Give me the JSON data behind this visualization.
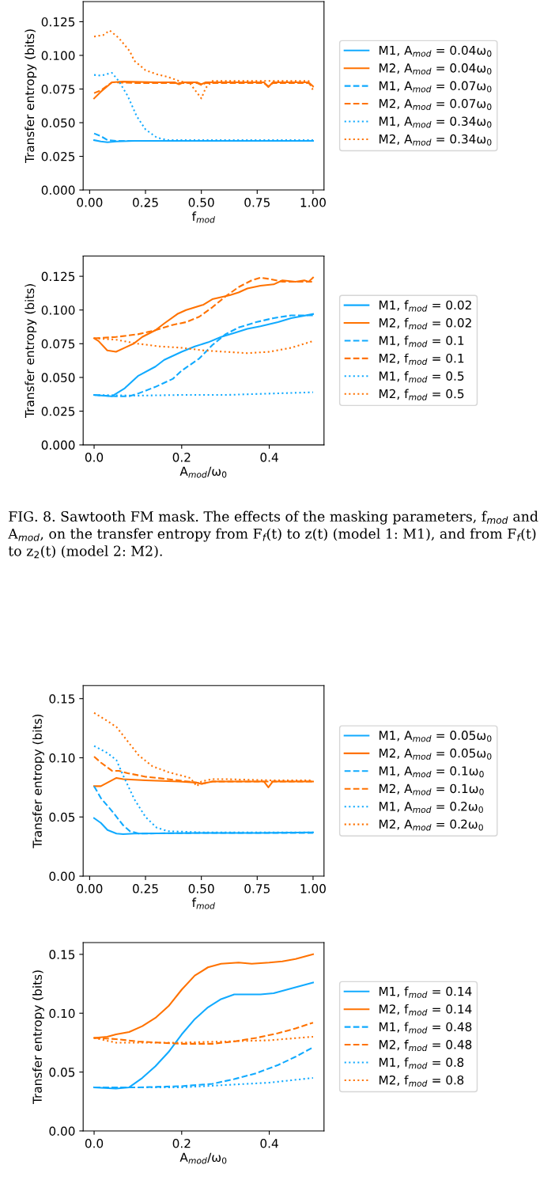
{
  "chart_data": [
    {
      "type": "line",
      "ylabel": "Transfer entropy (bits)",
      "xlabel": "f$_{mod}$",
      "legend": "right",
      "grid": false,
      "marker": "none",
      "xlim": [
        -0.029,
        1.049
      ],
      "ylim": [
        0,
        0.14
      ],
      "xticks": [
        {
          "value": 0,
          "label": "0.00"
        },
        {
          "value": 0.25,
          "label": "0.25"
        },
        {
          "value": 0.5,
          "label": "0.50"
        },
        {
          "value": 0.75,
          "label": "0.75"
        },
        {
          "value": 1,
          "label": "1.00"
        }
      ],
      "yticks": [
        {
          "value": 0,
          "label": "0.000"
        },
        {
          "value": 0.025,
          "label": "0.025"
        },
        {
          "value": 0.05,
          "label": "0.050"
        },
        {
          "value": 0.075,
          "label": "0.075"
        },
        {
          "value": 0.1,
          "label": "0.100"
        },
        {
          "value": 0.125,
          "label": "0.125"
        }
      ],
      "series": [
        {
          "name": "M1, A$_{mod}$ = 0.04ω$_{0}$",
          "color": "#11aaff",
          "line_style": "solid",
          "x": [
            0.02,
            0.05,
            0.08,
            0.12,
            0.2,
            0.4,
            0.6,
            0.8,
            1.0
          ],
          "values": [
            0.037,
            0.036,
            0.0355,
            0.036,
            0.0365,
            0.0365,
            0.0365,
            0.0365,
            0.0365
          ]
        },
        {
          "name": "M2, A$_{mod}$ = 0.04ω$_{0}$",
          "color": "#ff7200",
          "line_style": "solid",
          "x": [
            0.02,
            0.05,
            0.1,
            0.15,
            0.3,
            0.38,
            0.4,
            0.42,
            0.48,
            0.5,
            0.52,
            0.6,
            0.78,
            0.8,
            0.82,
            0.98,
            1.0
          ],
          "values": [
            0.068,
            0.073,
            0.08,
            0.0805,
            0.08,
            0.08,
            0.0785,
            0.08,
            0.08,
            0.0785,
            0.08,
            0.08,
            0.08,
            0.0765,
            0.08,
            0.08,
            0.077
          ]
        },
        {
          "name": "M1, A$_{mod}$ = 0.07ω$_{0}$",
          "color": "#11aaff",
          "line_style": "dashed",
          "x": [
            0.02,
            0.05,
            0.08,
            0.12,
            0.2,
            0.4,
            0.6,
            0.8,
            1.0
          ],
          "values": [
            0.042,
            0.04,
            0.037,
            0.0365,
            0.0365,
            0.0365,
            0.0365,
            0.0365,
            0.0365
          ]
        },
        {
          "name": "M2, A$_{mod}$ = 0.07ω$_{0}$",
          "color": "#ff7200",
          "line_style": "dashed",
          "x": [
            0.02,
            0.05,
            0.1,
            0.2,
            0.3,
            0.48,
            0.5,
            0.52,
            0.78,
            0.8,
            0.82,
            0.98,
            1.0
          ],
          "values": [
            0.072,
            0.074,
            0.08,
            0.0795,
            0.0795,
            0.0795,
            0.078,
            0.0795,
            0.0795,
            0.077,
            0.0795,
            0.0795,
            0.076
          ]
        },
        {
          "name": "M1, A$_{mod}$ = 0.34ω$_{0}$",
          "color": "#11aaff",
          "line_style": "dotted",
          "x": [
            0.02,
            0.05,
            0.1,
            0.13,
            0.17,
            0.21,
            0.25,
            0.3,
            0.35,
            0.5,
            0.75,
            1.0
          ],
          "values": [
            0.0855,
            0.085,
            0.087,
            0.081,
            0.07,
            0.055,
            0.045,
            0.039,
            0.037,
            0.037,
            0.037,
            0.037
          ]
        },
        {
          "name": "M2, A$_{mod}$ = 0.34ω$_{0}$",
          "color": "#ff7200",
          "line_style": "dotted",
          "x": [
            0.02,
            0.06,
            0.09,
            0.13,
            0.18,
            0.2,
            0.25,
            0.3,
            0.35,
            0.4,
            0.45,
            0.5,
            0.52,
            0.55,
            0.75,
            0.98,
            1.0
          ],
          "values": [
            0.114,
            0.115,
            0.1185,
            0.113,
            0.103,
            0.096,
            0.089,
            0.086,
            0.084,
            0.081,
            0.079,
            0.068,
            0.076,
            0.081,
            0.081,
            0.081,
            0.074
          ]
        }
      ]
    },
    {
      "type": "line",
      "ylabel": "Transfer entropy (bits)",
      "xlabel": "A$_{mod}$/ω$_{0}$",
      "legend": "right",
      "grid": false,
      "marker": "none",
      "xlim": [
        -0.025,
        0.525
      ],
      "ylim": [
        0,
        0.14
      ],
      "xticks": [
        {
          "value": 0,
          "label": "0.0"
        },
        {
          "value": 0.2,
          "label": "0.2"
        },
        {
          "value": 0.4,
          "label": "0.4"
        }
      ],
      "yticks": [
        {
          "value": 0,
          "label": "0.000"
        },
        {
          "value": 0.025,
          "label": "0.025"
        },
        {
          "value": 0.05,
          "label": "0.050"
        },
        {
          "value": 0.075,
          "label": "0.075"
        },
        {
          "value": 0.1,
          "label": "0.100"
        },
        {
          "value": 0.125,
          "label": "0.125"
        }
      ],
      "annotations": [
        "FIG. 8. Sawtooth FM mask. The effects of the masking parameters, f$_{mod}$ and A$_{mod}$, on the transfer entropy from F$_{f}$(t) to z(t) (model 1: M1), and from F$_{f}$(t) to z$_{2}$(t) (model 2: M2)."
      ],
      "series": [
        {
          "name": "M1, f$_{mod}$ = 0.02",
          "color": "#11aaff",
          "line_style": "solid",
          "x": [
            0,
            0.04,
            0.07,
            0.1,
            0.14,
            0.16,
            0.2,
            0.23,
            0.26,
            0.29,
            0.32,
            0.35,
            0.38,
            0.42,
            0.45,
            0.5
          ],
          "values": [
            0.037,
            0.036,
            0.042,
            0.051,
            0.058,
            0.063,
            0.069,
            0.073,
            0.076,
            0.08,
            0.083,
            0.086,
            0.088,
            0.091,
            0.094,
            0.097
          ]
        },
        {
          "name": "M2, f$_{mod}$ = 0.02",
          "color": "#ff7200",
          "line_style": "solid",
          "x": [
            0,
            0.01,
            0.03,
            0.05,
            0.07,
            0.09,
            0.11,
            0.14,
            0.16,
            0.19,
            0.21,
            0.25,
            0.27,
            0.31,
            0.33,
            0.35,
            0.38,
            0.41,
            0.43,
            0.46,
            0.48,
            0.49,
            0.5
          ],
          "values": [
            0.079,
            0.077,
            0.07,
            0.069,
            0.072,
            0.075,
            0.08,
            0.085,
            0.09,
            0.097,
            0.1,
            0.104,
            0.108,
            0.111,
            0.113,
            0.116,
            0.118,
            0.119,
            0.122,
            0.121,
            0.122,
            0.121,
            0.124
          ]
        },
        {
          "name": "M1, f$_{mod}$ = 0.1",
          "color": "#11aaff",
          "line_style": "dashed",
          "x": [
            0,
            0.05,
            0.08,
            0.1,
            0.14,
            0.18,
            0.2,
            0.24,
            0.27,
            0.3,
            0.33,
            0.37,
            0.41,
            0.45,
            0.5
          ],
          "values": [
            0.037,
            0.036,
            0.036,
            0.038,
            0.043,
            0.049,
            0.055,
            0.064,
            0.074,
            0.082,
            0.087,
            0.091,
            0.094,
            0.096,
            0.096
          ]
        },
        {
          "name": "M2, f$_{mod}$ = 0.1",
          "color": "#ff7200",
          "line_style": "dashed",
          "x": [
            0,
            0.05,
            0.1,
            0.14,
            0.18,
            0.21,
            0.24,
            0.27,
            0.3,
            0.33,
            0.36,
            0.38,
            0.4,
            0.43,
            0.5
          ],
          "values": [
            0.079,
            0.08,
            0.082,
            0.085,
            0.089,
            0.091,
            0.095,
            0.102,
            0.11,
            0.117,
            0.122,
            0.124,
            0.123,
            0.121,
            0.121
          ]
        },
        {
          "name": "M1, f$_{mod}$ = 0.5",
          "color": "#11aaff",
          "line_style": "dotted",
          "x": [
            0,
            0.1,
            0.2,
            0.3,
            0.4,
            0.5
          ],
          "values": [
            0.037,
            0.0365,
            0.037,
            0.037,
            0.038,
            0.039
          ]
        },
        {
          "name": "M2, f$_{mod}$ = 0.5",
          "color": "#ff7200",
          "line_style": "dotted",
          "x": [
            0,
            0.05,
            0.1,
            0.15,
            0.2,
            0.25,
            0.3,
            0.35,
            0.4,
            0.45,
            0.5
          ],
          "values": [
            0.079,
            0.078,
            0.075,
            0.073,
            0.072,
            0.07,
            0.069,
            0.068,
            0.069,
            0.072,
            0.077
          ]
        }
      ]
    },
    {
      "type": "line",
      "ylabel": "Transfer entropy (bits)",
      "xlabel": "f$_{mod}$",
      "legend": "right",
      "grid": false,
      "marker": "none",
      "xlim": [
        -0.029,
        1.049
      ],
      "ylim": [
        0,
        0.161
      ],
      "xticks": [
        {
          "value": 0,
          "label": "0.00"
        },
        {
          "value": 0.25,
          "label": "0.25"
        },
        {
          "value": 0.5,
          "label": "0.50"
        },
        {
          "value": 0.75,
          "label": "0.75"
        },
        {
          "value": 1,
          "label": "1.00"
        }
      ],
      "yticks": [
        {
          "value": 0,
          "label": "0.00"
        },
        {
          "value": 0.05,
          "label": "0.05"
        },
        {
          "value": 0.1,
          "label": "0.10"
        },
        {
          "value": 0.15,
          "label": "0.15"
        }
      ],
      "series": [
        {
          "name": "M1, A$_{mod}$ = 0.05ω$_{0}$",
          "color": "#11aaff",
          "line_style": "solid",
          "x": [
            0.02,
            0.05,
            0.08,
            0.12,
            0.15,
            0.2,
            0.5,
            0.75,
            1.0
          ],
          "values": [
            0.049,
            0.045,
            0.039,
            0.036,
            0.0355,
            0.036,
            0.0365,
            0.0365,
            0.037
          ]
        },
        {
          "name": "M2, A$_{mod}$ = 0.05ω$_{0}$",
          "color": "#ff7200",
          "line_style": "solid",
          "x": [
            0.02,
            0.05,
            0.09,
            0.12,
            0.15,
            0.25,
            0.4,
            0.48,
            0.5,
            0.55,
            0.78,
            0.8,
            0.82,
            1.0
          ],
          "values": [
            0.076,
            0.076,
            0.08,
            0.083,
            0.082,
            0.081,
            0.08,
            0.079,
            0.078,
            0.08,
            0.08,
            0.075,
            0.08,
            0.08
          ]
        },
        {
          "name": "M1, A$_{mod}$ = 0.1ω$_{0}$",
          "color": "#11aaff",
          "line_style": "dashed",
          "x": [
            0.02,
            0.05,
            0.1,
            0.15,
            0.18,
            0.22,
            0.5,
            0.75,
            1.0
          ],
          "values": [
            0.076,
            0.066,
            0.055,
            0.043,
            0.038,
            0.036,
            0.0365,
            0.0365,
            0.0365
          ]
        },
        {
          "name": "M2, A$_{mod}$ = 0.1ω$_{0}$",
          "color": "#ff7200",
          "line_style": "dashed",
          "x": [
            0.02,
            0.05,
            0.1,
            0.13,
            0.17,
            0.25,
            0.35,
            0.48,
            0.5,
            0.55,
            0.75,
            1.0
          ],
          "values": [
            0.101,
            0.096,
            0.089,
            0.089,
            0.087,
            0.084,
            0.082,
            0.079,
            0.078,
            0.08,
            0.08,
            0.08
          ]
        },
        {
          "name": "M1, A$_{mod}$ = 0.2ω$_{0}$",
          "color": "#11aaff",
          "line_style": "dotted",
          "x": [
            0.02,
            0.08,
            0.12,
            0.15,
            0.2,
            0.25,
            0.3,
            0.35,
            0.5,
            0.75,
            1.0
          ],
          "values": [
            0.11,
            0.104,
            0.098,
            0.085,
            0.065,
            0.05,
            0.041,
            0.038,
            0.037,
            0.037,
            0.037
          ]
        },
        {
          "name": "M2, A$_{mod}$ = 0.2ω$_{0}$",
          "color": "#ff7200",
          "line_style": "dotted",
          "x": [
            0.02,
            0.08,
            0.12,
            0.17,
            0.22,
            0.28,
            0.35,
            0.45,
            0.48,
            0.5,
            0.55,
            0.6,
            0.8,
            1.0
          ],
          "values": [
            0.138,
            0.131,
            0.126,
            0.114,
            0.102,
            0.093,
            0.088,
            0.083,
            0.076,
            0.08,
            0.082,
            0.082,
            0.081,
            0.081
          ]
        }
      ]
    },
    {
      "type": "line",
      "ylabel": "Transfer entropy (bits)",
      "xlabel": "A$_{mod}$/ω$_{0}$",
      "legend": "right",
      "grid": false,
      "marker": "none",
      "xlim": [
        -0.025,
        0.525
      ],
      "ylim": [
        0,
        0.16
      ],
      "xticks": [
        {
          "value": 0,
          "label": "0.0"
        },
        {
          "value": 0.2,
          "label": "0.2"
        },
        {
          "value": 0.4,
          "label": "0.4"
        }
      ],
      "yticks": [
        {
          "value": 0,
          "label": "0.00"
        },
        {
          "value": 0.05,
          "label": "0.05"
        },
        {
          "value": 0.1,
          "label": "0.10"
        },
        {
          "value": 0.15,
          "label": "0.15"
        }
      ],
      "series": [
        {
          "name": "M1, f$_{mod}$ = 0.14",
          "color": "#11aaff",
          "line_style": "solid",
          "x": [
            0,
            0.05,
            0.08,
            0.11,
            0.14,
            0.17,
            0.2,
            0.23,
            0.26,
            0.29,
            0.32,
            0.35,
            0.38,
            0.41,
            0.44,
            0.47,
            0.5
          ],
          "values": [
            0.037,
            0.036,
            0.037,
            0.045,
            0.055,
            0.067,
            0.082,
            0.095,
            0.105,
            0.112,
            0.116,
            0.116,
            0.116,
            0.117,
            0.12,
            0.123,
            0.126
          ]
        },
        {
          "name": "M2, f$_{mod}$ = 0.14",
          "color": "#ff7200",
          "line_style": "solid",
          "x": [
            0,
            0.03,
            0.05,
            0.08,
            0.11,
            0.14,
            0.17,
            0.2,
            0.23,
            0.26,
            0.29,
            0.33,
            0.36,
            0.4,
            0.43,
            0.46,
            0.5
          ],
          "values": [
            0.079,
            0.08,
            0.082,
            0.084,
            0.089,
            0.096,
            0.106,
            0.12,
            0.132,
            0.139,
            0.142,
            0.143,
            0.142,
            0.143,
            0.144,
            0.146,
            0.15
          ]
        },
        {
          "name": "M1, f$_{mod}$ = 0.48",
          "color": "#11aaff",
          "line_style": "dashed",
          "x": [
            0,
            0.1,
            0.2,
            0.27,
            0.32,
            0.37,
            0.42,
            0.46,
            0.5
          ],
          "values": [
            0.037,
            0.037,
            0.038,
            0.04,
            0.044,
            0.049,
            0.056,
            0.063,
            0.071
          ]
        },
        {
          "name": "M2, f$_{mod}$ = 0.48",
          "color": "#ff7200",
          "line_style": "dashed",
          "x": [
            0,
            0.05,
            0.1,
            0.15,
            0.2,
            0.27,
            0.32,
            0.37,
            0.42,
            0.46,
            0.5
          ],
          "values": [
            0.079,
            0.078,
            0.076,
            0.075,
            0.074,
            0.074,
            0.076,
            0.079,
            0.083,
            0.087,
            0.092
          ]
        },
        {
          "name": "M1, f$_{mod}$ = 0.8",
          "color": "#11aaff",
          "line_style": "dotted",
          "x": [
            0,
            0.1,
            0.2,
            0.3,
            0.4,
            0.45,
            0.5
          ],
          "values": [
            0.037,
            0.037,
            0.037,
            0.039,
            0.041,
            0.043,
            0.045
          ]
        },
        {
          "name": "M2, f$_{mod}$ = 0.8",
          "color": "#ff7200",
          "line_style": "dotted",
          "x": [
            0,
            0.05,
            0.1,
            0.2,
            0.3,
            0.4,
            0.5
          ],
          "values": [
            0.079,
            0.075,
            0.075,
            0.075,
            0.076,
            0.077,
            0.08
          ]
        }
      ]
    }
  ]
}
